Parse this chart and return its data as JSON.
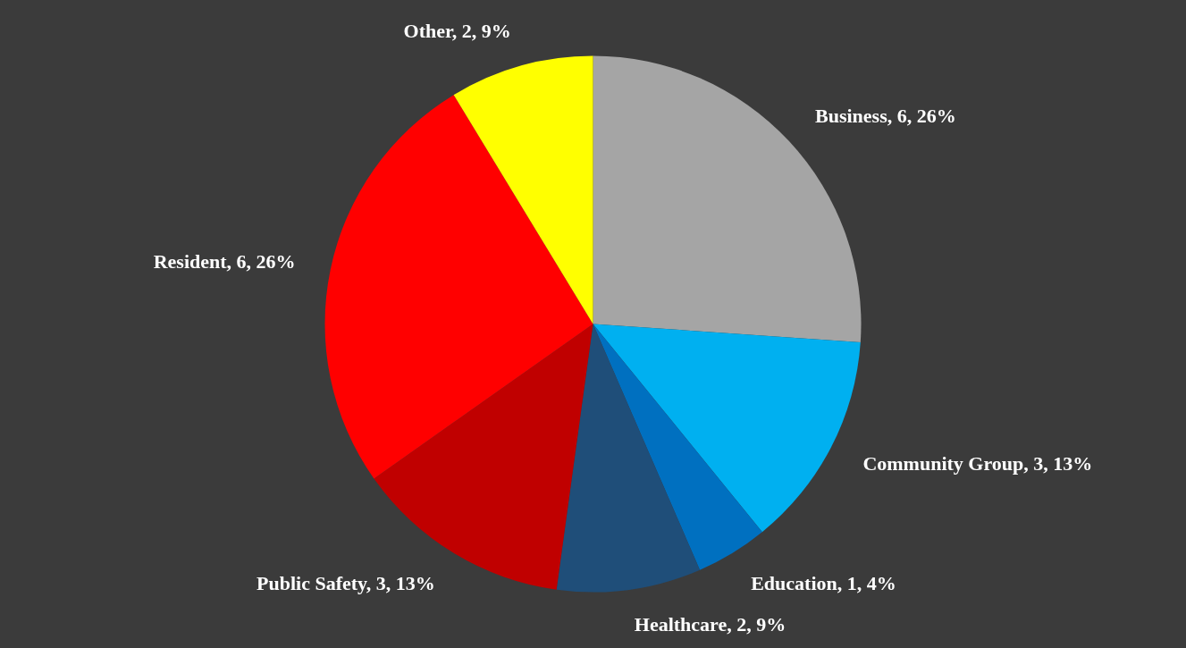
{
  "chart_data": {
    "type": "pie",
    "categories": [
      "Business",
      "Community Group",
      "Education",
      "Healthcare",
      "Public Safety",
      "Resident",
      "Other"
    ],
    "values": [
      6,
      3,
      1,
      2,
      3,
      6,
      2
    ],
    "colors": [
      "#a5a5a5",
      "#00b0f0",
      "#0070c0",
      "#1f4e79",
      "#c00000",
      "#ff0000",
      "#ffff00"
    ],
    "value_labels": [
      "6, 26%",
      "3, 13%",
      "1, 4%",
      "2, 9%",
      "3, 13%",
      "6, 26%",
      "2, 9%"
    ],
    "legend": false
  }
}
